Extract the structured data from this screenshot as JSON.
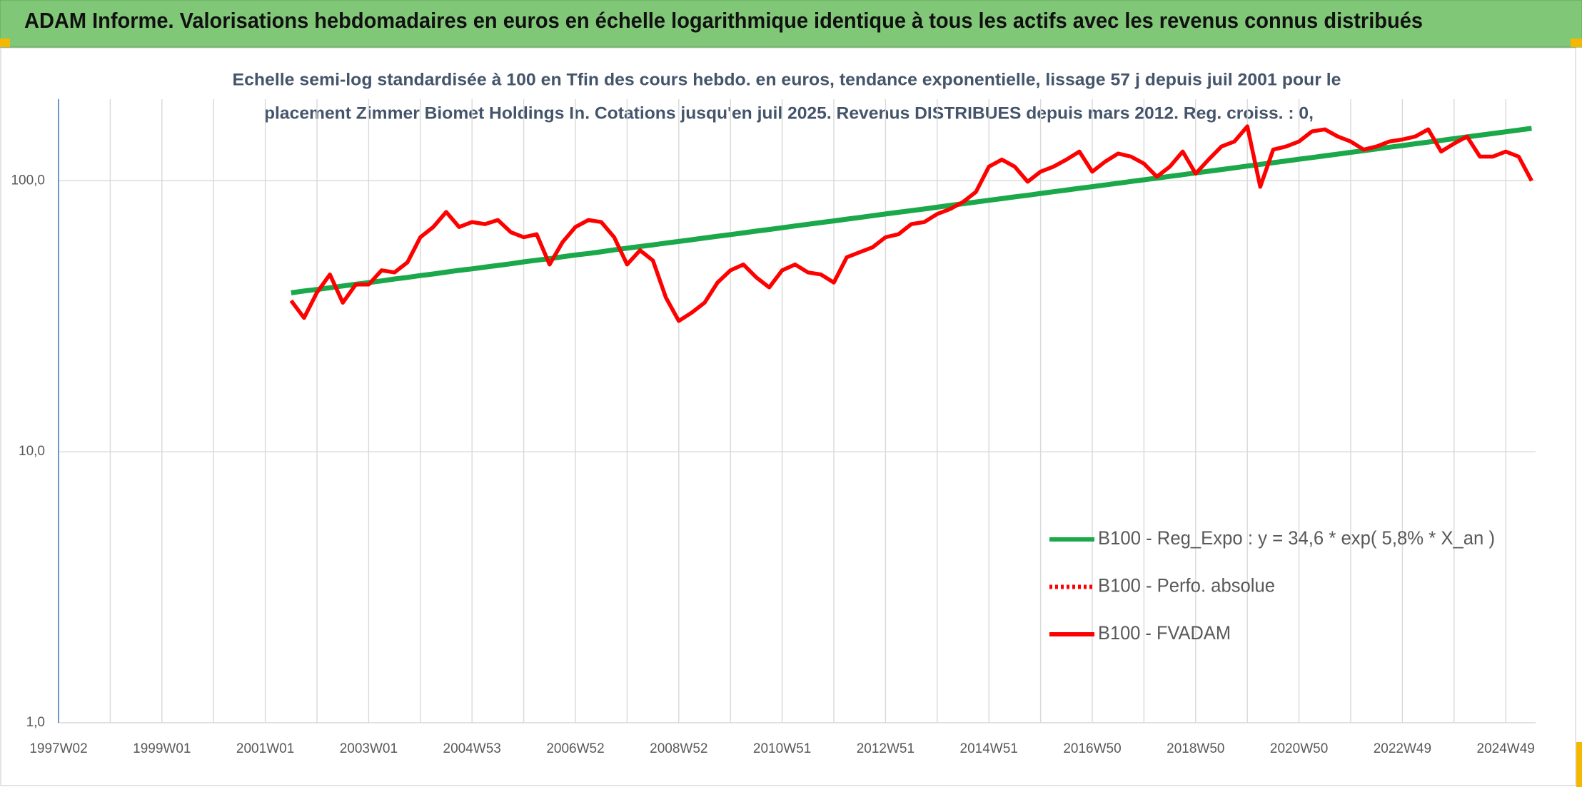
{
  "header": {
    "title": "ADAM Informe. Valorisations hebdomadaires en euros en échelle logarithmique identique à tous les actifs avec les revenus connus distribués"
  },
  "chart_data": {
    "type": "line",
    "title": [
      "Echelle semi-log standardisée à 100 en Tfin des cours hebdo. en euros, tendance exponentielle, lissage 57 j depuis juil 2001 pour le",
      "placement Zimmer Biomet Holdings In. Cotations jusqu'en juil 2025. Revenus DISTRIBUES depuis mars 2012. Reg. croiss. : 0,"
    ],
    "x": [
      "1997W02",
      null,
      null,
      null,
      null,
      null,
      null,
      null,
      "1999W01",
      null,
      null,
      null,
      null,
      null,
      null,
      null,
      "2001W01",
      null,
      null,
      null,
      null,
      null,
      null,
      null,
      "2003W01",
      null,
      null,
      null,
      null,
      null,
      null,
      null,
      "2004W53",
      null,
      null,
      null,
      null,
      null,
      null,
      null,
      "2006W52",
      null,
      null,
      null,
      null,
      null,
      null,
      null,
      "2008W52",
      null,
      null,
      null,
      null,
      null,
      null,
      null,
      "2010W51",
      null,
      null,
      null,
      null,
      null,
      null,
      null,
      "2012W51",
      null,
      null,
      null,
      null,
      null,
      null,
      null,
      "2014W51",
      null,
      null,
      null,
      null,
      null,
      null,
      null,
      "2016W50",
      null,
      null,
      null,
      null,
      null,
      null,
      null,
      "2018W50",
      null,
      null,
      null,
      null,
      null,
      null,
      null,
      "2020W50",
      null,
      null,
      null,
      null,
      null,
      null,
      null,
      "2022W49",
      null,
      null,
      null,
      null,
      null,
      null,
      null,
      "2024W49",
      null,
      null
    ],
    "log_scale": true,
    "ylim": [
      1,
      200
    ],
    "yticks": [
      {
        "value": 1,
        "label": "1,0"
      },
      {
        "value": 10,
        "label": "10,0"
      },
      {
        "value": 100,
        "label": "100,0"
      }
    ],
    "grid": true,
    "legend": "lower right",
    "series": [
      {
        "name": "B100 - Reg_Expo : y = 34,6 * exp( 5,8% *  X_an )",
        "color": "#1aa84a",
        "style": "solid",
        "values": [
          null,
          null,
          null,
          null,
          null,
          null,
          null,
          null,
          null,
          null,
          null,
          null,
          null,
          null,
          null,
          null,
          null,
          null,
          38.6,
          39.2,
          39.7,
          40.3,
          40.9,
          41.5,
          42.1,
          42.7,
          43.4,
          44.0,
          44.7,
          45.3,
          46.0,
          46.7,
          47.3,
          48.0,
          48.7,
          49.4,
          50.2,
          50.9,
          51.6,
          52.4,
          53.2,
          53.9,
          54.7,
          55.6,
          56.4,
          57.2,
          58.0,
          58.9,
          59.7,
          60.6,
          61.5,
          62.4,
          63.3,
          64.2,
          65.2,
          66.1,
          67.1,
          68.1,
          69.1,
          70.1,
          71.1,
          72.2,
          73.2,
          74.3,
          75.4,
          76.5,
          77.6,
          78.7,
          79.9,
          81.1,
          82.3,
          83.5,
          84.7,
          85.9,
          87.2,
          88.4,
          89.8,
          91.1,
          92.4,
          93.8,
          95.1,
          96.5,
          97.9,
          99.4,
          100.8,
          102.3,
          103.8,
          105.3,
          106.9,
          108.4,
          110.0,
          111.6,
          113.3,
          114.9,
          116.6,
          118.3,
          120.1,
          121.8,
          123.6,
          125.4,
          127.3,
          129.1,
          131.0,
          133.0,
          134.9,
          136.9,
          138.9,
          140.9,
          143.0,
          145.1,
          147.3,
          149.4,
          151.6,
          153.8,
          156.1
        ]
      },
      {
        "name": "B100 - Perfo. absolue",
        "color": "#ff0000",
        "style": "dotted",
        "values": [
          null,
          null,
          null,
          null,
          null,
          null,
          null,
          null,
          null,
          null,
          null,
          null,
          null,
          null,
          null,
          null,
          null,
          null,
          null,
          null,
          null,
          null,
          null,
          null,
          null,
          null,
          null,
          null,
          null,
          null,
          null,
          null,
          null,
          null,
          null,
          null,
          null,
          null,
          null,
          null,
          null,
          null,
          null,
          null,
          null,
          null,
          null,
          null,
          null,
          null,
          null,
          null,
          null,
          null,
          null,
          null,
          null,
          null,
          null,
          null,
          null,
          null,
          null,
          null,
          null,
          null,
          null,
          null,
          null,
          null,
          null,
          null,
          null,
          null,
          null,
          null,
          null,
          null,
          null,
          null,
          null,
          null,
          null,
          null,
          null,
          null,
          null,
          null,
          null,
          null,
          null,
          null,
          null,
          null,
          null,
          null,
          null,
          null,
          null,
          null,
          null,
          null,
          null,
          null,
          null,
          null,
          null,
          null,
          null,
          null,
          null,
          null,
          null,
          null,
          null
        ]
      },
      {
        "name": "B100 - FVADAM",
        "color": "#ff0000",
        "style": "solid",
        "values": [
          null,
          null,
          null,
          null,
          null,
          null,
          null,
          null,
          null,
          null,
          null,
          null,
          null,
          null,
          null,
          null,
          null,
          null,
          36.1,
          31.2,
          38.7,
          45.1,
          35.5,
          41.4,
          41.4,
          46.7,
          45.9,
          50.0,
          61.9,
          67.5,
          76.7,
          67.5,
          70.4,
          69.2,
          71.6,
          64.6,
          61.9,
          63.5,
          49.1,
          59.3,
          67.5,
          71.6,
          70.4,
          61.9,
          49.1,
          55.4,
          50.8,
          37.1,
          30.4,
          32.6,
          35.5,
          42.1,
          46.7,
          49.1,
          44.0,
          40.4,
          46.7,
          49.1,
          45.9,
          45.1,
          42.1,
          52.2,
          54.5,
          56.8,
          61.9,
          63.5,
          69.2,
          70.4,
          75.4,
          78.7,
          83.5,
          91.0,
          112.7,
          119.7,
          112.7,
          99.2,
          108.0,
          112.7,
          119.7,
          128.2,
          108.0,
          117.7,
          126.0,
          122.8,
          115.7,
          103.5,
          112.7,
          128.2,
          106.2,
          119.7,
          133.8,
          139.6,
          158.8,
          95.0,
          130.3,
          133.8,
          139.6,
          152.1,
          154.8,
          145.7,
          139.6,
          130.3,
          133.8,
          139.6,
          142.0,
          145.7,
          154.8,
          128.2,
          137.2,
          145.7,
          122.8,
          122.8,
          128.2,
          122.8,
          100.0
        ]
      }
    ]
  }
}
